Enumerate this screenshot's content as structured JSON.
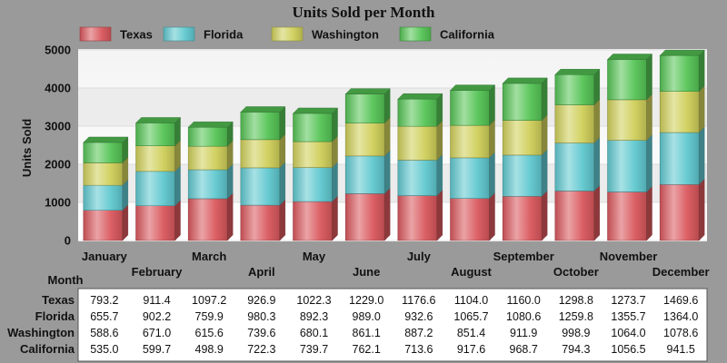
{
  "chart_data": {
    "type": "bar",
    "stacked": true,
    "title": "Units Sold per Month",
    "xlabel": "Month",
    "ylabel": "Units Sold",
    "ylim": [
      0,
      5000
    ],
    "yticks": [
      0,
      1000,
      2000,
      3000,
      4000,
      5000
    ],
    "legend_position": "top",
    "categories": [
      "January",
      "February",
      "March",
      "April",
      "May",
      "June",
      "July",
      "August",
      "September",
      "October",
      "November",
      "December"
    ],
    "series": [
      {
        "name": "Texas",
        "color": "#d9585d",
        "values": [
          793.2,
          911.4,
          1097.2,
          926.9,
          1022.3,
          1229.0,
          1176.6,
          1104.0,
          1160.0,
          1298.8,
          1273.7,
          1469.6
        ]
      },
      {
        "name": "Florida",
        "color": "#5fc8cf",
        "values": [
          655.7,
          902.2,
          759.9,
          980.3,
          892.3,
          989.0,
          932.6,
          1065.7,
          1080.6,
          1259.8,
          1355.7,
          1364.0
        ]
      },
      {
        "name": "Washington",
        "color": "#cfcf5a",
        "values": [
          588.6,
          671.0,
          615.6,
          739.6,
          680.1,
          861.1,
          887.2,
          851.4,
          911.9,
          998.9,
          1064.0,
          1078.6
        ]
      },
      {
        "name": "California",
        "color": "#55c455",
        "values": [
          535.0,
          599.7,
          498.9,
          722.3,
          739.7,
          762.1,
          713.6,
          917.6,
          968.7,
          794.3,
          1056.5,
          941.5
        ]
      }
    ]
  }
}
